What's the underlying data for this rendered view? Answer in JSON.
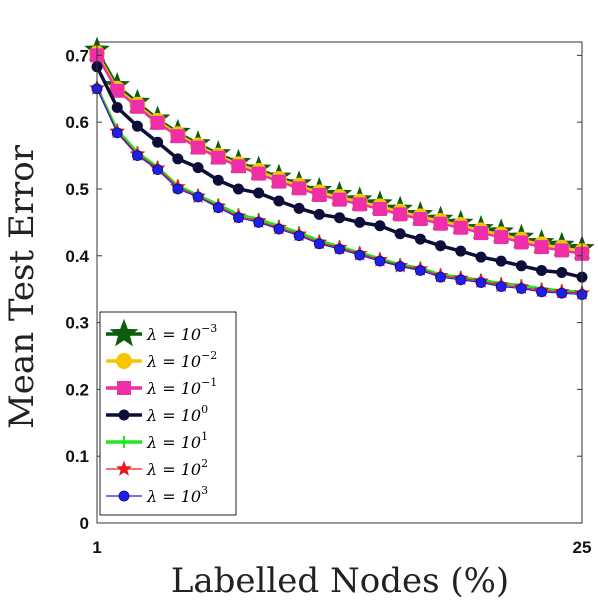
{
  "chart_data": {
    "type": "line",
    "title": "",
    "xlabel": "Labelled Nodes (%)",
    "ylabel": "Mean Test Error",
    "xlim": [
      1,
      25
    ],
    "ylim": [
      0,
      0.72
    ],
    "x_tick_labels": [
      "1",
      "25"
    ],
    "y_tick_labels": [
      "0",
      "0.1",
      "0.2",
      "0.3",
      "0.4",
      "0.5",
      "0.6",
      "0.7"
    ],
    "grid": false,
    "legend_position": "bottom-left",
    "x": [
      1,
      2,
      3,
      4,
      5,
      6,
      7,
      8,
      9,
      10,
      11,
      12,
      13,
      14,
      15,
      16,
      17,
      18,
      19,
      20,
      21,
      22,
      23,
      24,
      25
    ],
    "series": [
      {
        "name": "λ = 10^-3",
        "label_base": "λ = 10",
        "label_exp": "−3",
        "color": "#0b5d0b",
        "marker": "star-big",
        "values": [
          0.708,
          0.655,
          0.63,
          0.605,
          0.585,
          0.568,
          0.553,
          0.54,
          0.53,
          0.518,
          0.508,
          0.498,
          0.492,
          0.484,
          0.478,
          0.47,
          0.462,
          0.455,
          0.449,
          0.441,
          0.436,
          0.428,
          0.42,
          0.416,
          0.411
        ]
      },
      {
        "name": "λ = 10^-2",
        "label_base": "λ = 10",
        "label_exp": "−2",
        "color": "#f7c500",
        "marker": "circle",
        "values": [
          0.703,
          0.65,
          0.626,
          0.602,
          0.582,
          0.565,
          0.55,
          0.537,
          0.527,
          0.515,
          0.505,
          0.495,
          0.488,
          0.481,
          0.474,
          0.466,
          0.459,
          0.452,
          0.446,
          0.438,
          0.432,
          0.424,
          0.417,
          0.412,
          0.407
        ]
      },
      {
        "name": "λ = 10^-1",
        "label_base": "λ = 10",
        "label_exp": "−1",
        "color": "#ee2fa8",
        "marker": "square",
        "values": [
          0.7,
          0.647,
          0.623,
          0.599,
          0.579,
          0.562,
          0.547,
          0.534,
          0.523,
          0.511,
          0.501,
          0.491,
          0.484,
          0.477,
          0.47,
          0.462,
          0.455,
          0.448,
          0.442,
          0.434,
          0.428,
          0.42,
          0.413,
          0.408,
          0.403
        ]
      },
      {
        "name": "λ = 10^0",
        "label_base": "λ = 10",
        "label_exp": "0",
        "color": "#0d0d3a",
        "marker": "circle-dark",
        "values": [
          0.683,
          0.622,
          0.594,
          0.57,
          0.545,
          0.532,
          0.513,
          0.5,
          0.494,
          0.482,
          0.471,
          0.462,
          0.457,
          0.45,
          0.445,
          0.433,
          0.425,
          0.415,
          0.407,
          0.398,
          0.392,
          0.385,
          0.378,
          0.375,
          0.368
        ]
      },
      {
        "name": "λ = 10^1",
        "label_base": "λ = 10",
        "label_exp": "1",
        "color": "#22e622",
        "marker": "plus",
        "values": [
          0.653,
          0.589,
          0.555,
          0.533,
          0.505,
          0.491,
          0.477,
          0.462,
          0.455,
          0.445,
          0.435,
          0.423,
          0.414,
          0.405,
          0.396,
          0.387,
          0.382,
          0.372,
          0.368,
          0.364,
          0.359,
          0.356,
          0.351,
          0.348,
          0.346
        ]
      },
      {
        "name": "λ = 10^2",
        "label_base": "λ = 10",
        "label_exp": "2",
        "color": "#e81a1a",
        "marker": "star",
        "values": [
          0.651,
          0.586,
          0.552,
          0.531,
          0.503,
          0.489,
          0.474,
          0.459,
          0.452,
          0.442,
          0.432,
          0.42,
          0.412,
          0.403,
          0.394,
          0.385,
          0.38,
          0.37,
          0.366,
          0.362,
          0.356,
          0.353,
          0.348,
          0.346,
          0.344
        ]
      },
      {
        "name": "λ = 10^3",
        "label_base": "λ = 10",
        "label_exp": "3",
        "color": "#1f1fe6",
        "marker": "circle-small",
        "values": [
          0.65,
          0.584,
          0.55,
          0.529,
          0.5,
          0.488,
          0.472,
          0.457,
          0.45,
          0.44,
          0.43,
          0.418,
          0.41,
          0.401,
          0.392,
          0.384,
          0.378,
          0.368,
          0.364,
          0.36,
          0.354,
          0.351,
          0.346,
          0.344,
          0.342
        ]
      }
    ]
  }
}
